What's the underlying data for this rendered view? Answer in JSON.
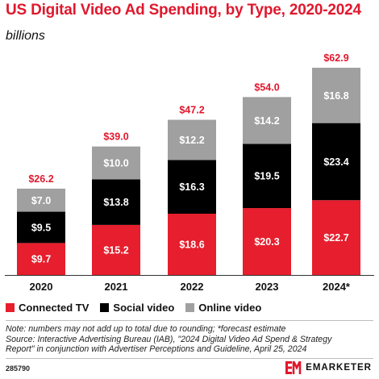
{
  "header": {
    "title": "US Digital Video Ad Spending, by Type, 2020-2024",
    "subtitle": "billions"
  },
  "colors": {
    "accent": "#e0182d",
    "connected_tv": "#e61e2d",
    "social_video": "#000000",
    "online_video": "#a0a0a0"
  },
  "chart_data": {
    "type": "bar",
    "stacked": true,
    "categories": [
      "2020",
      "2021",
      "2022",
      "2023",
      "2024*"
    ],
    "series": [
      {
        "name": "Connected TV",
        "values": [
          9.7,
          15.2,
          18.6,
          20.3,
          22.7
        ],
        "labels": [
          "$9.7",
          "$15.2",
          "$18.6",
          "$20.3",
          "$22.7"
        ]
      },
      {
        "name": "Social video",
        "values": [
          9.5,
          13.8,
          16.3,
          19.5,
          23.4
        ],
        "labels": [
          "$9.5",
          "$13.8",
          "$16.3",
          "$19.5",
          "$23.4"
        ]
      },
      {
        "name": "Online video",
        "values": [
          7.0,
          10.0,
          12.2,
          14.2,
          16.8
        ],
        "labels": [
          "$7.0",
          "$10.0",
          "$12.2",
          "$14.2",
          "$16.8"
        ]
      }
    ],
    "totals": [
      26.2,
      39.0,
      47.2,
      54.0,
      62.9
    ],
    "total_labels": [
      "$26.2",
      "$39.0",
      "$47.2",
      "$54.0",
      "$62.9"
    ],
    "ylim": [
      0,
      62.9
    ],
    "grid": false,
    "legend_position": "bottom-left"
  },
  "footnote": {
    "line1": "Note: numbers may not add up to total due to rounding; *forecast estimate",
    "line2": "Source: Interactive Advertising Bureau (IAB), \"2024 Digital Video Ad Spend & Strategy",
    "line3": "Report\" in conjunction with Advertiser Perceptions and Guideline, April 25, 2024"
  },
  "footer": {
    "chart_id": "285790",
    "brand": "EMARKETER"
  }
}
